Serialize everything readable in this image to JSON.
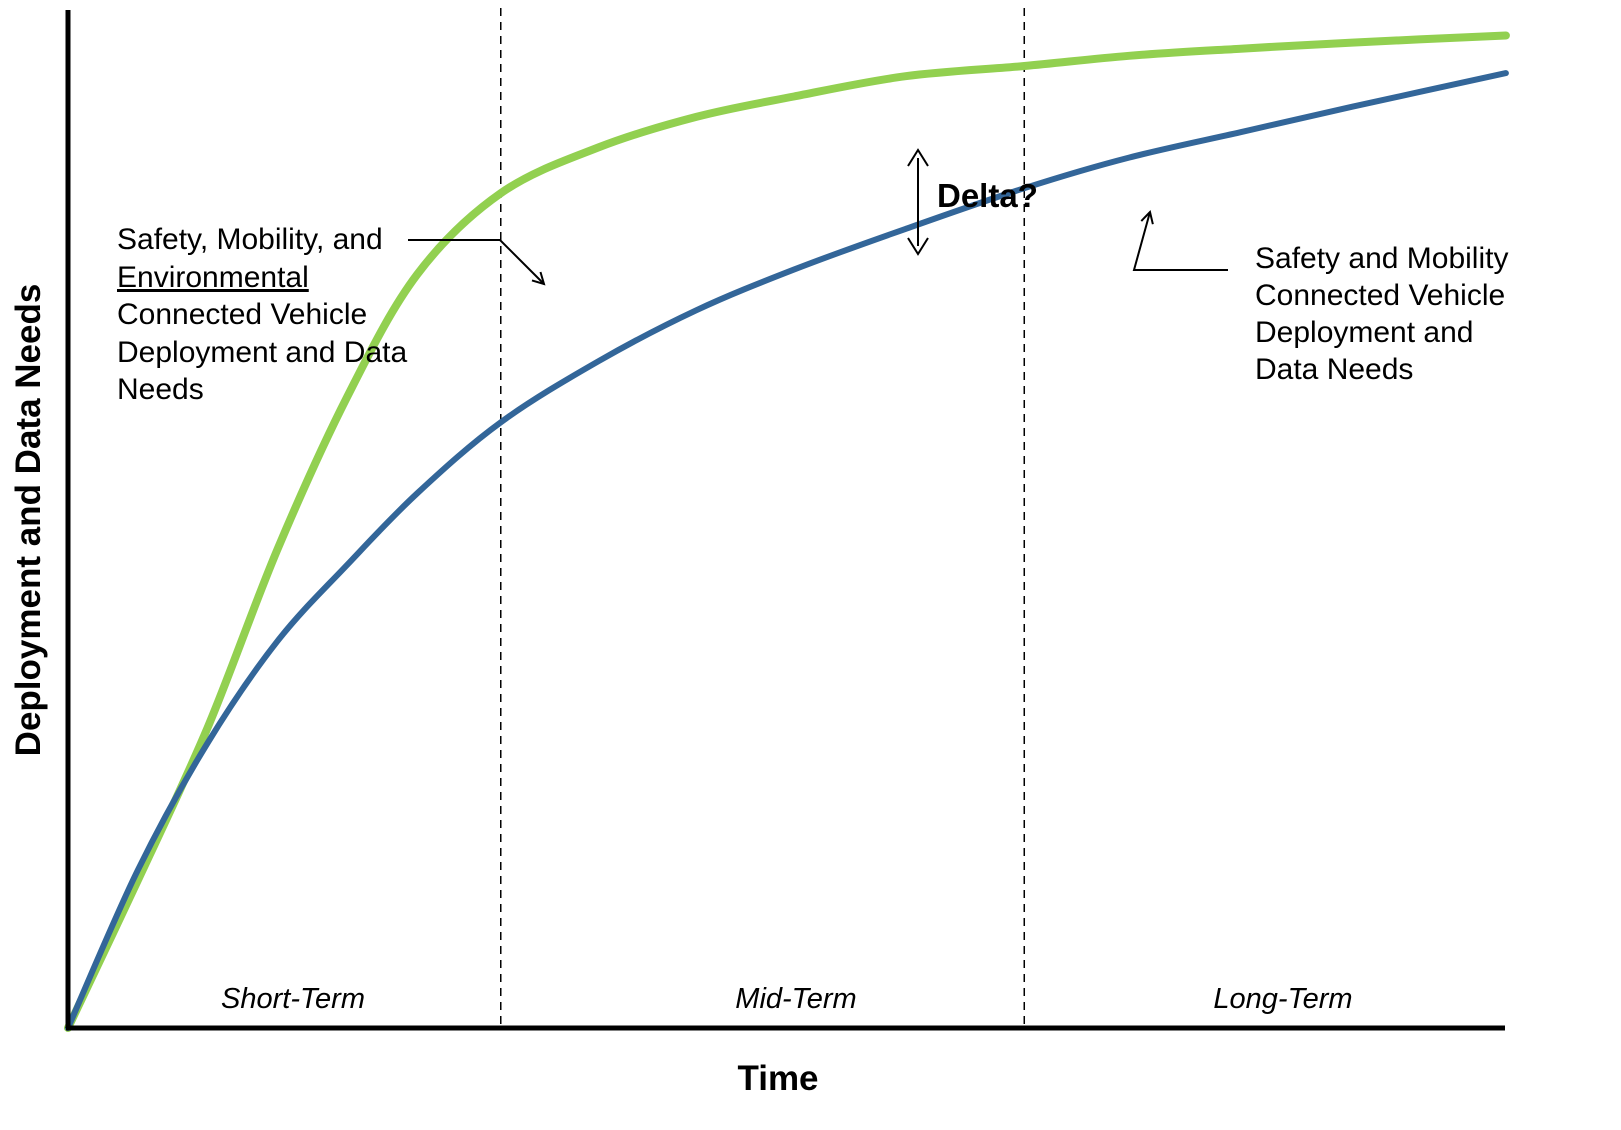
{
  "chart_data": {
    "type": "line",
    "xlabel": "Time",
    "ylabel": "Deployment and Data Needs",
    "xlim": [
      0,
      100
    ],
    "ylim": [
      0,
      100
    ],
    "periods": [
      "Short-Term",
      "Mid-Term",
      "Long-Term"
    ],
    "period_boundaries": [
      31,
      68.5
    ],
    "series": [
      {
        "name": "Safety, Mobility, and Environmental Connected Vehicle Deployment and Data Needs",
        "color": "#92d050",
        "x": [
          0,
          5,
          10,
          15,
          20,
          25,
          31,
          38,
          45,
          52,
          60,
          68.5,
          76,
          84,
          92,
          103
        ],
        "y": [
          0,
          14.5,
          29.5,
          47,
          62,
          74,
          82,
          86.5,
          89.5,
          91.5,
          93.5,
          94.5,
          95.5,
          96.2,
          96.8,
          97.5
        ]
      },
      {
        "name": "Safety and Mobility Connected Vehicle Deployment and Data Needs",
        "color": "#336699",
        "x": [
          0,
          5,
          10,
          15,
          20,
          25,
          31,
          38,
          45,
          52,
          60,
          68.5,
          76,
          84,
          92,
          103
        ],
        "y": [
          0,
          15.5,
          28,
          38,
          45.5,
          52.5,
          59.5,
          65.5,
          70.5,
          74.5,
          78.5,
          82.5,
          85.5,
          88,
          90.5,
          93.8
        ]
      }
    ],
    "annotations": {
      "delta": "Delta?",
      "label_top_line1": "Safety, Mobility, and",
      "label_top_line2": "Environmental",
      "label_top_line3": "Connected Vehicle",
      "label_top_line4": "Deployment and Data",
      "label_top_line5": "Needs",
      "label_bottom_line1": "Safety and Mobility",
      "label_bottom_line2": "Connected Vehicle",
      "label_bottom_line3": "Deployment and",
      "label_bottom_line4": "Data Needs"
    },
    "grid": false,
    "legend": "none"
  }
}
